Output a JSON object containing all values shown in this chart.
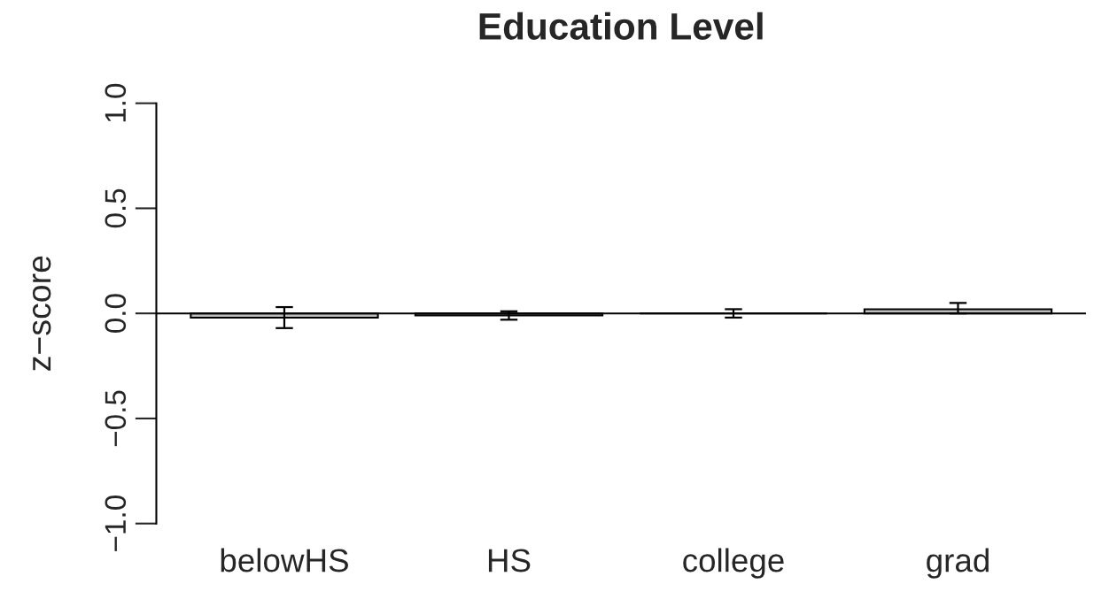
{
  "chart_data": {
    "type": "bar",
    "title": "Education Level",
    "ylabel": "z−score",
    "categories": [
      "belowHS",
      "HS",
      "college",
      "grad"
    ],
    "values": [
      -0.02,
      -0.01,
      0.0,
      0.02
    ],
    "colors": [
      "#bebebe",
      "#bebebe",
      "#000000",
      "#bebebe"
    ],
    "errors": [
      [
        -0.07,
        0.03
      ],
      [
        -0.03,
        0.01
      ],
      [
        -0.02,
        0.02
      ],
      [
        0.0,
        0.05
      ]
    ],
    "ylim": [
      -1.0,
      1.0
    ],
    "yticks": [
      {
        "value": -1.0,
        "label": "−1.0"
      },
      {
        "value": -0.5,
        "label": "−0.5"
      },
      {
        "value": 0.0,
        "label": "0.0"
      },
      {
        "value": 0.5,
        "label": "0.5"
      },
      {
        "value": 1.0,
        "label": "1.0"
      }
    ],
    "ref_lines": [
      {
        "axis": "y",
        "value": 0.0,
        "color": "#000000",
        "line_style": "solid"
      }
    ]
  }
}
